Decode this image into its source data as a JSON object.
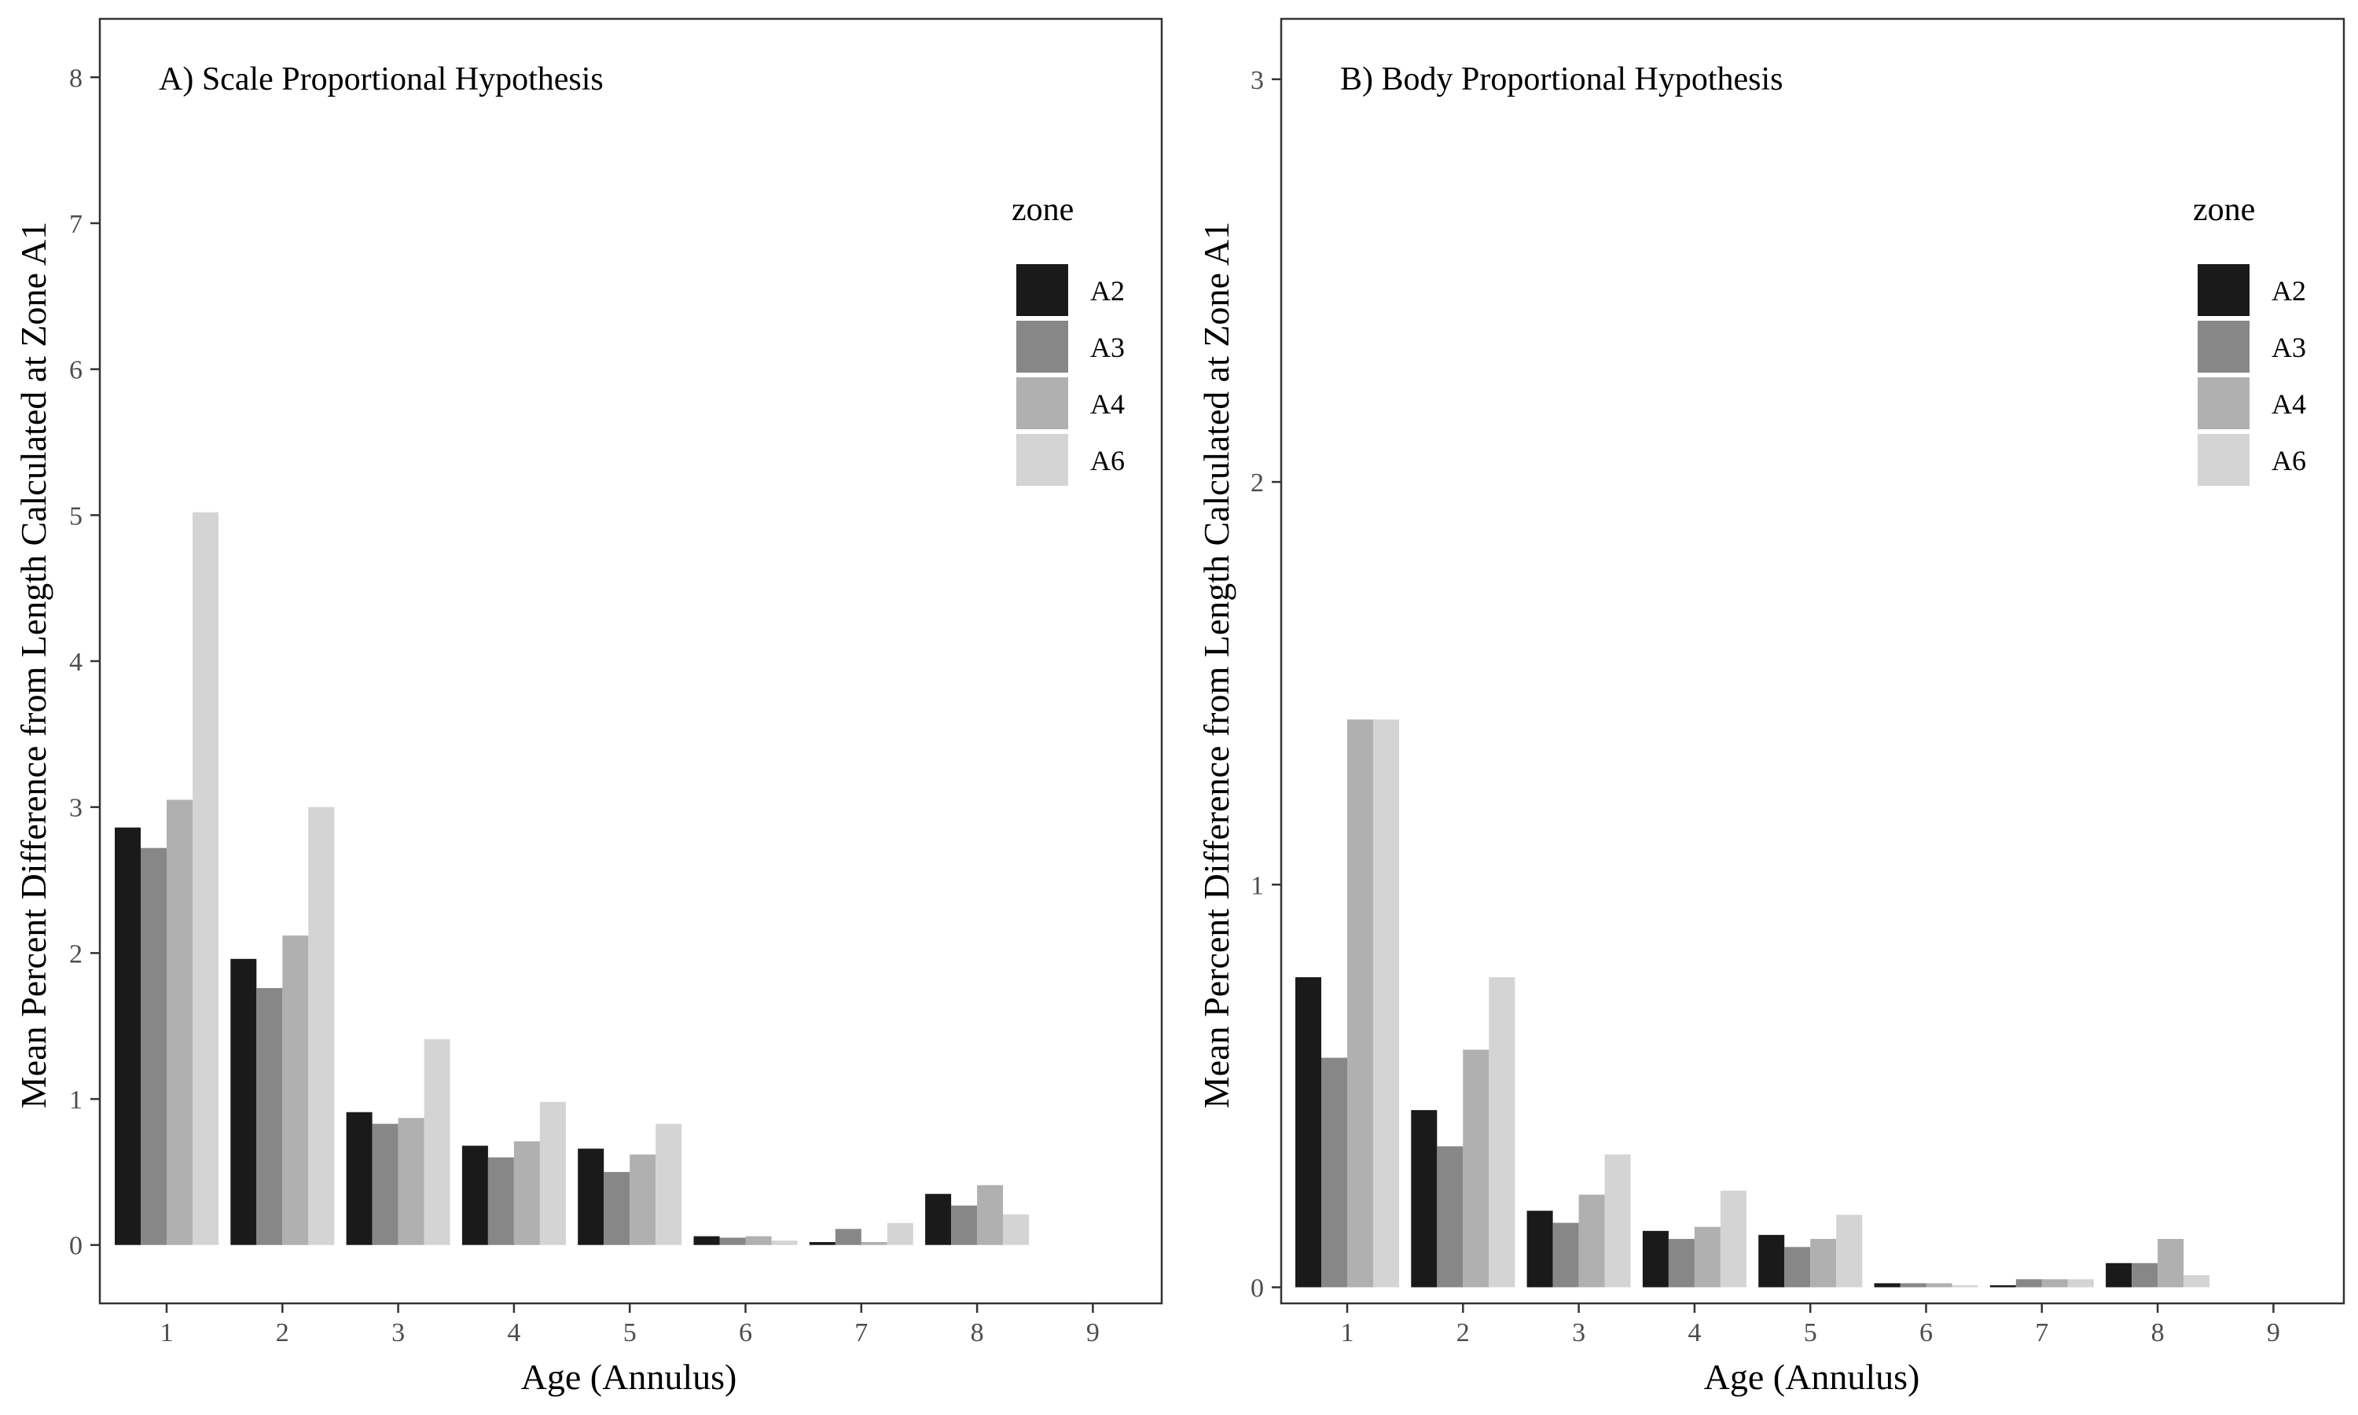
{
  "colors": {
    "A2": "#1a1a1a",
    "A3": "#878787",
    "A4": "#b0b0b0",
    "A6": "#d4d4d4",
    "frame": "#333333",
    "tick_text": "#4d4d4d"
  },
  "chart_data": [
    {
      "type": "bar",
      "title": "A) Scale Proportional Hypothesis",
      "xlabel": "Age (Annulus)",
      "ylabel": "Mean Percent Difference from Length Calculated at Zone A1",
      "x_ticks": [
        "1",
        "2",
        "3",
        "4",
        "5",
        "6",
        "7",
        "8",
        "9"
      ],
      "y_ticks": [
        "0",
        "1",
        "2",
        "3",
        "4",
        "5",
        "6",
        "7",
        "8"
      ],
      "ylim": [
        -0.4,
        8.4
      ],
      "grid": false,
      "legend": {
        "title": "zone",
        "placement": "right-inside",
        "labels": [
          "A2",
          "A3",
          "A4",
          "A6"
        ]
      },
      "categories": [
        "1",
        "2",
        "3",
        "4",
        "5",
        "6",
        "7",
        "8"
      ],
      "series": [
        {
          "name": "A2",
          "values": [
            2.86,
            1.96,
            0.91,
            0.68,
            0.66,
            0.06,
            0.02,
            0.35
          ]
        },
        {
          "name": "A3",
          "values": [
            2.72,
            1.76,
            0.83,
            0.6,
            0.5,
            0.05,
            0.11,
            0.27
          ]
        },
        {
          "name": "A4",
          "values": [
            3.05,
            2.12,
            0.87,
            0.71,
            0.62,
            0.06,
            0.02,
            0.41
          ]
        },
        {
          "name": "A6",
          "values": [
            5.02,
            3.0,
            1.41,
            0.98,
            0.83,
            0.03,
            0.15,
            0.21
          ]
        }
      ]
    },
    {
      "type": "bar",
      "title": "B) Body Proportional Hypothesis",
      "xlabel": "Age (Annulus)",
      "ylabel": "Mean Percent Difference from Length Calculated at Zone A1",
      "x_ticks": [
        "1",
        "2",
        "3",
        "4",
        "5",
        "6",
        "7",
        "8",
        "9"
      ],
      "y_ticks": [
        "0",
        "1",
        "2",
        "3"
      ],
      "ylim": [
        -0.04,
        3.15
      ],
      "grid": false,
      "legend": {
        "title": "zone",
        "placement": "right-inside",
        "labels": [
          "A2",
          "A3",
          "A4",
          "A6"
        ]
      },
      "categories": [
        "1",
        "2",
        "3",
        "4",
        "5",
        "6",
        "7",
        "8"
      ],
      "series": [
        {
          "name": "A2",
          "values": [
            0.77,
            0.44,
            0.19,
            0.14,
            0.13,
            0.01,
            0.005,
            0.06
          ]
        },
        {
          "name": "A3",
          "values": [
            0.57,
            0.35,
            0.16,
            0.12,
            0.1,
            0.01,
            0.02,
            0.06
          ]
        },
        {
          "name": "A4",
          "values": [
            1.41,
            0.59,
            0.23,
            0.15,
            0.12,
            0.01,
            0.02,
            0.12
          ]
        },
        {
          "name": "A6",
          "values": [
            1.41,
            0.77,
            0.33,
            0.24,
            0.18,
            0.005,
            0.02,
            0.03
          ]
        }
      ]
    }
  ]
}
